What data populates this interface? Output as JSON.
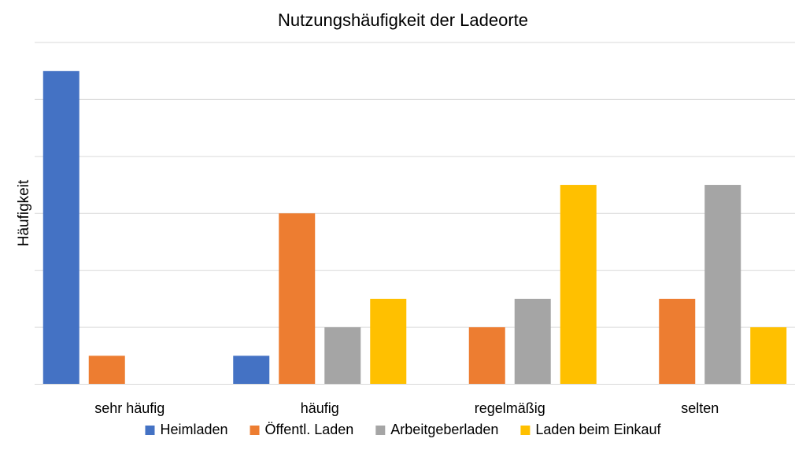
{
  "chart_data": {
    "type": "bar",
    "title": "Nutzungshäufigkeit der Ladeorte",
    "xlabel": "",
    "ylabel": "Häufigkeit",
    "categories": [
      "sehr häufig",
      "häufig",
      "regelmäßig",
      "selten"
    ],
    "series": [
      {
        "name": "Heimladen",
        "color": "#4472C4",
        "values": [
          11,
          1,
          0,
          0
        ]
      },
      {
        "name": "Öffentl. Laden",
        "color": "#ED7D31",
        "values": [
          1,
          6,
          2,
          3
        ]
      },
      {
        "name": "Arbeitgeberladen",
        "color": "#A5A5A5",
        "values": [
          0,
          2,
          3,
          7
        ]
      },
      {
        "name": "Laden beim Einkauf",
        "color": "#FFC000",
        "values": [
          0,
          3,
          7,
          2
        ]
      }
    ],
    "ylim": [
      0,
      12
    ],
    "gridlines": [
      0,
      2,
      4,
      6,
      8,
      10,
      12
    ],
    "grid": true,
    "y_tick_labels_visible": false,
    "legend_position": "bottom"
  }
}
